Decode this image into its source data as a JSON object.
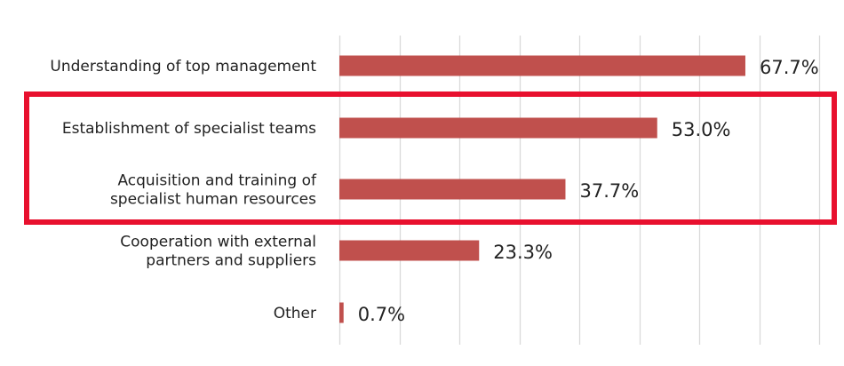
{
  "chart_data": {
    "type": "bar",
    "orientation": "horizontal",
    "categories": [
      [
        "Understanding of top management"
      ],
      [
        "Establishment of specialist teams"
      ],
      [
        "Acquisition and training of",
        "specialist human resources"
      ],
      [
        "Cooperation with external",
        "partners and suppliers"
      ],
      [
        "Other"
      ]
    ],
    "values": [
      67.7,
      53.0,
      37.7,
      23.3,
      0.7
    ],
    "value_labels": [
      "67.7%",
      "53.0%",
      "37.7%",
      "23.3%",
      "0.7%"
    ],
    "xlim": [
      0,
      80
    ],
    "grid": "vertical",
    "highlighted_categories": [
      1,
      2
    ],
    "colors": {
      "bar": "#c0504d",
      "grid": "#d9d9d9",
      "highlight_box": "#e8102e",
      "text": "#222222"
    }
  }
}
